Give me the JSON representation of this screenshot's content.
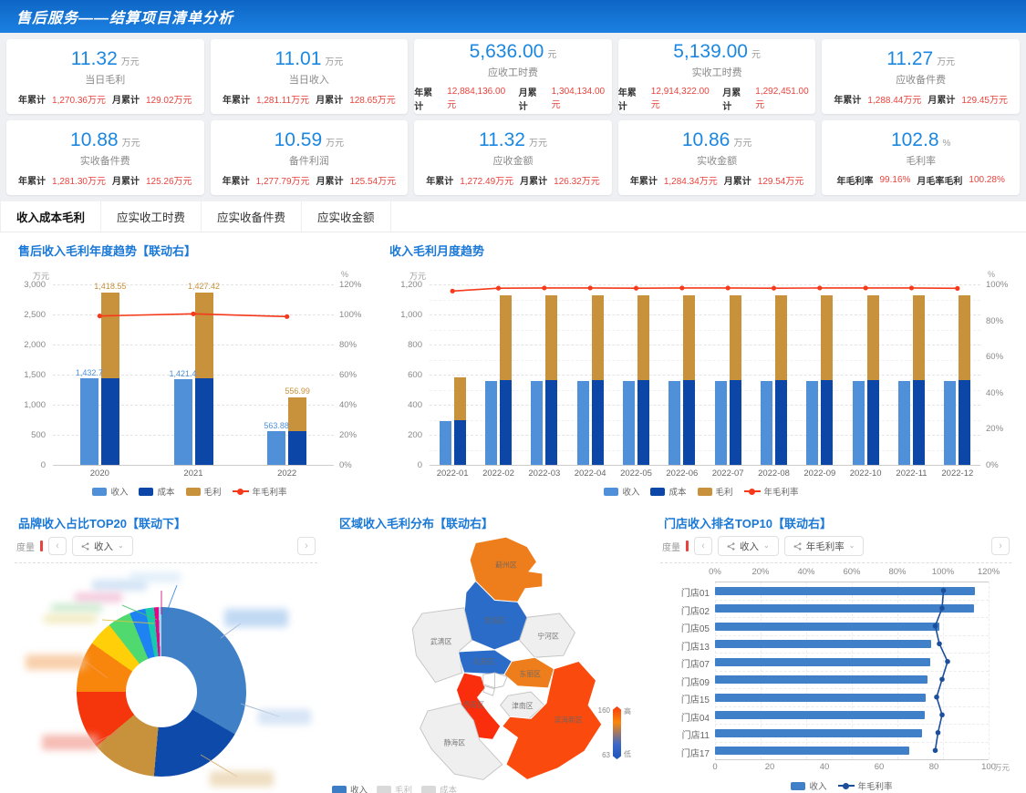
{
  "header": {
    "title": "售后服务——结算项目清单分析"
  },
  "kpi_cards": [
    {
      "value": "11.32",
      "unit": "万元",
      "name": "当日毛利",
      "stats": [
        {
          "label": "年累计",
          "value": "1,270.36万元"
        },
        {
          "label": "月累计",
          "value": "129.02万元"
        }
      ]
    },
    {
      "value": "11.01",
      "unit": "万元",
      "name": "当日收入",
      "stats": [
        {
          "label": "年累计",
          "value": "1,281.11万元"
        },
        {
          "label": "月累计",
          "value": "128.65万元"
        }
      ]
    },
    {
      "value": "5,636.00",
      "unit": "元",
      "name": "应收工时费",
      "stats": [
        {
          "label": "年累计",
          "value": "12,884,136.00元"
        },
        {
          "label": "月累计",
          "value": "1,304,134.00元"
        }
      ]
    },
    {
      "value": "5,139.00",
      "unit": "元",
      "name": "实收工时费",
      "stats": [
        {
          "label": "年累计",
          "value": "12,914,322.00元"
        },
        {
          "label": "月累计",
          "value": "1,292,451.00元"
        }
      ]
    },
    {
      "value": "11.27",
      "unit": "万元",
      "name": "应收备件费",
      "stats": [
        {
          "label": "年累计",
          "value": "1,288.44万元"
        },
        {
          "label": "月累计",
          "value": "129.45万元"
        }
      ]
    },
    {
      "value": "10.88",
      "unit": "万元",
      "name": "实收备件费",
      "stats": [
        {
          "label": "年累计",
          "value": "1,281.30万元"
        },
        {
          "label": "月累计",
          "value": "125.26万元"
        }
      ]
    },
    {
      "value": "10.59",
      "unit": "万元",
      "name": "备件利润",
      "stats": [
        {
          "label": "年累计",
          "value": "1,277.79万元"
        },
        {
          "label": "月累计",
          "value": "125.54万元"
        }
      ]
    },
    {
      "value": "11.32",
      "unit": "万元",
      "name": "应收金额",
      "stats": [
        {
          "label": "年累计",
          "value": "1,272.49万元"
        },
        {
          "label": "月累计",
          "value": "126.32万元"
        }
      ]
    },
    {
      "value": "10.86",
      "unit": "万元",
      "name": "实收金额",
      "stats": [
        {
          "label": "年累计",
          "value": "1,284.34万元"
        },
        {
          "label": "月累计",
          "value": "129.54万元"
        }
      ]
    },
    {
      "value": "102.8",
      "unit": "%",
      "name": "毛利率",
      "stats": [
        {
          "label": "年毛利率",
          "value": "99.16%"
        },
        {
          "label": "月毛率毛利",
          "value": "100.28%"
        }
      ]
    }
  ],
  "tabs": [
    {
      "label": "收入成本毛利",
      "active": true
    },
    {
      "label": "应实收工时费",
      "active": false
    },
    {
      "label": "应实收备件费",
      "active": false
    },
    {
      "label": "应实收金额",
      "active": false
    }
  ],
  "chart_data": [
    {
      "id": "yearly",
      "type": "bar+line",
      "title": "售后收入毛利年度趋势【联动右】",
      "categories": [
        "2020",
        "2021",
        "2022"
      ],
      "y_left_unit": "万元",
      "y_right_unit": "%",
      "ticks_left": [
        "0",
        "500",
        "1,000",
        "1,500",
        "2,000",
        "2,500",
        "3,000"
      ],
      "ticks_right": [
        "0%",
        "20%",
        "40%",
        "60%",
        "80%",
        "100%",
        "120%"
      ],
      "bar_max": 3000,
      "line_max": 120,
      "series": [
        {
          "name": "收入",
          "type": "bar",
          "color": "#4f90d9",
          "values": [
            1432.7,
            1421.4,
            563.88
          ],
          "labels": [
            "1,432.7",
            "1,421.4",
            "563.88"
          ]
        },
        {
          "name": "成本",
          "type": "bar",
          "color": "#0c47a8",
          "values": [
            1445,
            1438,
            568
          ]
        },
        {
          "name": "毛利",
          "type": "bar",
          "color": "#c8913c",
          "values": [
            1418.55,
            1427.42,
            556.99
          ],
          "labels": [
            "1,418.55",
            "1,427.42",
            "556.99"
          ]
        },
        {
          "name": "年毛利率",
          "type": "line",
          "color": "#f5391a",
          "values": [
            99.0,
            100.4,
            98.6
          ]
        }
      ]
    },
    {
      "id": "monthly",
      "type": "bar+line",
      "title": "收入毛利月度趋势",
      "categories": [
        "2022-01",
        "2022-02",
        "2022-03",
        "2022-04",
        "2022-05",
        "2022-06",
        "2022-07",
        "2022-08",
        "2022-09",
        "2022-10",
        "2022-11",
        "2022-12"
      ],
      "y_left_unit": "万元",
      "y_right_unit": "%",
      "ticks_left": [
        "0",
        "200",
        "400",
        "600",
        "800",
        "1,000",
        "1,200"
      ],
      "ticks_right": [
        "0%",
        "20%",
        "40%",
        "60%",
        "80%",
        "100%"
      ],
      "bar_max": 1200,
      "line_max": 100,
      "series": [
        {
          "name": "收入",
          "type": "bar",
          "color": "#4f90d9",
          "values": [
            290,
            557,
            556,
            555,
            556,
            557,
            555,
            556,
            555,
            557,
            556,
            557
          ]
        },
        {
          "name": "成本",
          "type": "bar",
          "color": "#0c47a8",
          "values": [
            296,
            566,
            565,
            565,
            565,
            566,
            565,
            565,
            565,
            566,
            565,
            566
          ]
        },
        {
          "name": "毛利",
          "type": "bar",
          "color": "#c8913c",
          "values": [
            288,
            564,
            563,
            563,
            563,
            564,
            563,
            563,
            563,
            564,
            563,
            564
          ]
        },
        {
          "name": "年毛利率",
          "type": "line",
          "color": "#f5391a",
          "values": [
            96.3,
            97.9,
            98,
            98,
            97.9,
            98,
            98,
            97.9,
            98,
            98,
            98,
            97.8
          ]
        }
      ]
    },
    {
      "id": "brand",
      "type": "pie",
      "title": "品牌收入占比TOP20【联动下】",
      "controls": {
        "measure_label": "度量",
        "prev": "‹",
        "next": "›",
        "pills": [
          "收入"
        ]
      },
      "note": "slice labels are privacy-blurred in the source image",
      "slices": [
        {
          "label": "",
          "blurred": true,
          "deg": 120,
          "color": "#3f80c6"
        },
        {
          "label": "",
          "blurred": true,
          "deg": 65,
          "color": "#0d4aaa"
        },
        {
          "label": "",
          "blurred": true,
          "deg": 45,
          "color": "#c8913c"
        },
        {
          "label": "",
          "blurred": true,
          "deg": 40,
          "color": "#f5350c"
        },
        {
          "label": "",
          "blurred": true,
          "deg": 35,
          "color": "#f8860d"
        },
        {
          "label": "",
          "blurred": true,
          "deg": 17,
          "color": "#ffcf0a"
        },
        {
          "label": "",
          "blurred": true,
          "deg": 16,
          "color": "#4fd96f"
        },
        {
          "label": "",
          "blurred": true,
          "deg": 11,
          "color": "#1f82f2"
        },
        {
          "label": "",
          "blurred": true,
          "deg": 6,
          "color": "#19c9ad"
        },
        {
          "label": "",
          "blurred": true,
          "deg": 3,
          "color": "#e20a84"
        },
        {
          "label": "",
          "blurred": true,
          "deg": 2,
          "color": "#9fd3f2"
        }
      ]
    },
    {
      "id": "region",
      "type": "map",
      "title": "区域收入毛利分布【联动右】",
      "regions": [
        {
          "name": "蓟州区",
          "color": "#ee7d1b"
        },
        {
          "name": "宝坻区",
          "color": "#2a6cc8"
        },
        {
          "name": "武清区",
          "color": "#efefef"
        },
        {
          "name": "宁河区",
          "color": "#efefef"
        },
        {
          "name": "北辰区",
          "color": "#2a6cc8"
        },
        {
          "name": "东丽区",
          "color": "#ee7d1b"
        },
        {
          "name": "西青区",
          "color": "#fa2e0c"
        },
        {
          "name": "津南区",
          "color": "#efefef"
        },
        {
          "name": "滨海新区",
          "color": "#fa4a0e"
        },
        {
          "name": "静海区",
          "color": "#efefef"
        }
      ],
      "gradient_legend": {
        "max": "160",
        "min": "63",
        "high_label": "高",
        "low_label": "低"
      },
      "legend": [
        {
          "label": "收入",
          "color": "#3c7dc6",
          "active": true
        },
        {
          "label": "毛利",
          "color": "#d9d9d9",
          "active": false
        },
        {
          "label": "成本",
          "color": "#d9d9d9",
          "active": false
        }
      ]
    },
    {
      "id": "stores",
      "type": "bar+line",
      "title": "门店收入排名TOP10【联动右】",
      "controls": {
        "measure_label": "度量",
        "prev": "‹",
        "next": "›",
        "pills": [
          "收入",
          "年毛利率"
        ]
      },
      "categories": [
        "门店01",
        "门店02",
        "门店05",
        "门店13",
        "门店07",
        "门店09",
        "门店15",
        "门店04",
        "门店11",
        "门店17"
      ],
      "ticks_top": [
        "0%",
        "20%",
        "40%",
        "60%",
        "80%",
        "100%",
        "120%"
      ],
      "ticks_bottom": [
        "0",
        "20",
        "40",
        "60",
        "80",
        "100"
      ],
      "axis_unit": "万元",
      "bar_max": 100,
      "line_max": 120,
      "series": [
        {
          "name": "收入",
          "type": "bar",
          "color": "#3f80c9",
          "values": [
            95,
            94.5,
            82,
            79,
            78.5,
            77.5,
            77,
            76.5,
            75.5,
            71
          ]
        },
        {
          "name": "年毛利率",
          "type": "line",
          "color": "#1b4f9c",
          "values": [
            100.2,
            99.6,
            96.6,
            98.4,
            102,
            99.6,
            97.2,
            99.6,
            97.8,
            96.6
          ]
        }
      ]
    }
  ]
}
